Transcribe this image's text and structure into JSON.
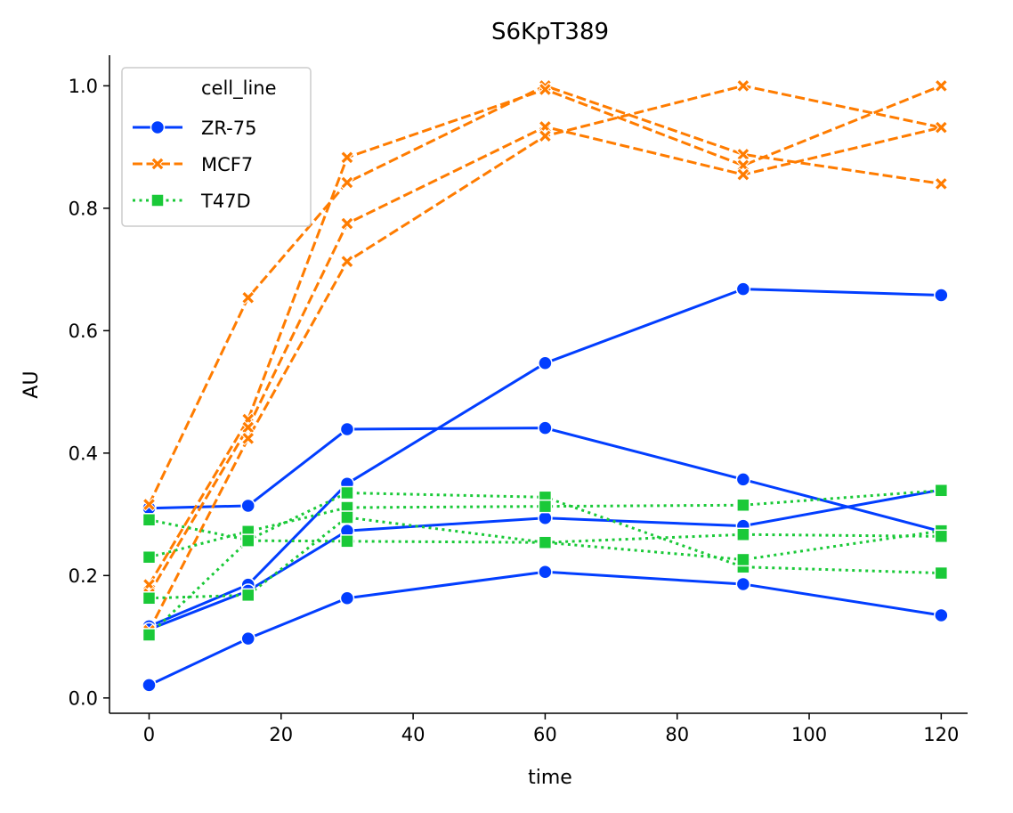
{
  "chart_data": {
    "type": "line",
    "title": "S6KpT389",
    "xlabel": "time",
    "ylabel": "AU",
    "xlim": [
      -6,
      124
    ],
    "ylim": [
      -0.025,
      1.05
    ],
    "xticks": [
      0,
      20,
      40,
      60,
      80,
      100,
      120
    ],
    "yticks": [
      0.0,
      0.2,
      0.4,
      0.6,
      0.8,
      1.0
    ],
    "xtick_labels": [
      "0",
      "20",
      "40",
      "60",
      "80",
      "100",
      "120"
    ],
    "ytick_labels": [
      "0.0",
      "0.2",
      "0.4",
      "0.6",
      "0.8",
      "1.0"
    ],
    "x": [
      0,
      15,
      30,
      60,
      90,
      120
    ],
    "legend": {
      "title": "cell_line",
      "placement": "top-left",
      "entries": [
        "ZR-75",
        "MCF7",
        "T47D"
      ]
    },
    "groups": [
      {
        "name": "ZR-75",
        "color": "#023eff",
        "dash": "solid",
        "marker": "circle",
        "replicates": [
          [
            0.31,
            0.314,
            0.439,
            0.441,
            0.357,
            0.272
          ],
          [
            0.117,
            0.185,
            0.35,
            0.547,
            0.668,
            0.658
          ],
          [
            0.112,
            0.175,
            0.273,
            0.294,
            0.281,
            0.34
          ],
          [
            0.021,
            0.097,
            0.163,
            0.206,
            0.186,
            0.135
          ]
        ]
      },
      {
        "name": "MCF7",
        "color": "#ff7c00",
        "dash": "dashed",
        "marker": "x",
        "replicates": [
          [
            0.316,
            0.654,
            0.842,
            1.0,
            0.888,
            0.84
          ],
          [
            0.185,
            0.455,
            0.883,
            0.994,
            0.87,
            1.0
          ],
          [
            0.17,
            0.442,
            0.775,
            0.933,
            0.855,
            0.932
          ],
          [
            0.11,
            0.424,
            0.713,
            0.918,
            1.0,
            0.932
          ]
        ]
      },
      {
        "name": "T47D",
        "color": "#1ac938",
        "dash": "dotted",
        "marker": "square",
        "replicates": [
          [
            0.291,
            0.258,
            0.335,
            0.328,
            0.214,
            0.204
          ],
          [
            0.23,
            0.272,
            0.311,
            0.313,
            0.315,
            0.339
          ],
          [
            0.163,
            0.168,
            0.295,
            0.254,
            0.226,
            0.273
          ],
          [
            0.103,
            0.257,
            0.256,
            0.254,
            0.267,
            0.264
          ]
        ]
      }
    ]
  }
}
